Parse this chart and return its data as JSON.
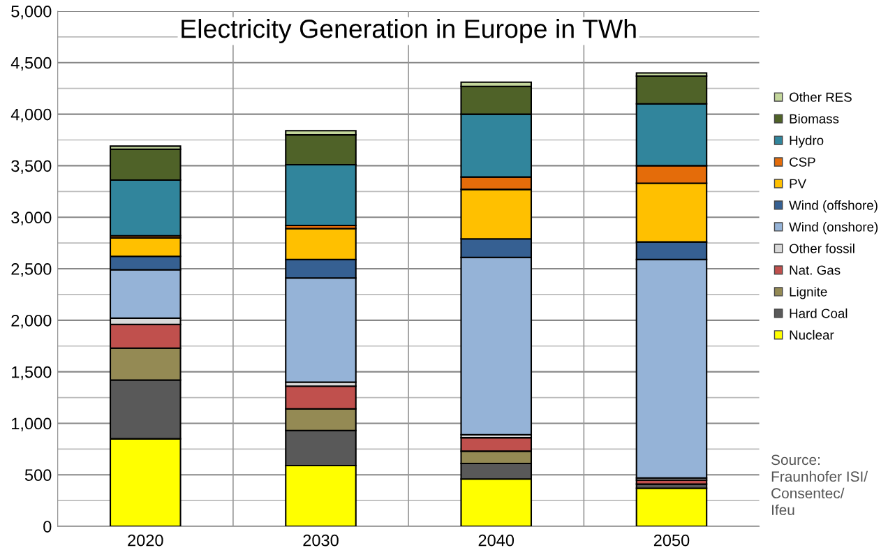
{
  "chart_data": {
    "type": "bar",
    "stacked": true,
    "title": "Electricity Generation in Europe in TWh",
    "categories": [
      "2020",
      "2030",
      "2040",
      "2050"
    ],
    "series": [
      {
        "name": "Nuclear",
        "color": "#ffff00",
        "values": [
          850,
          590,
          460,
          370
        ]
      },
      {
        "name": "Hard Coal",
        "color": "#595959",
        "values": [
          570,
          340,
          150,
          40
        ]
      },
      {
        "name": "Lignite",
        "color": "#948a54",
        "values": [
          310,
          210,
          120,
          null
        ]
      },
      {
        "name": "Nat. Gas",
        "color": "#c0504d",
        "values": [
          230,
          220,
          130,
          40
        ]
      },
      {
        "name": "Other fossil",
        "color": "#d9d9d9",
        "values": [
          60,
          40,
          30,
          20
        ]
      },
      {
        "name": "Wind (onshore)",
        "color": "#95b3d7",
        "values": [
          470,
          1010,
          1720,
          2120
        ]
      },
      {
        "name": "Wind (offshore)",
        "color": "#366092",
        "values": [
          130,
          180,
          180,
          170
        ]
      },
      {
        "name": "PV",
        "color": "#ffc000",
        "values": [
          180,
          300,
          480,
          570
        ]
      },
      {
        "name": "CSP",
        "color": "#e46c0a",
        "values": [
          20,
          30,
          120,
          170
        ]
      },
      {
        "name": "Hydro",
        "color": "#31859c",
        "values": [
          540,
          590,
          610,
          600
        ]
      },
      {
        "name": "Biomass",
        "color": "#4f6228",
        "values": [
          300,
          290,
          270,
          270
        ]
      },
      {
        "name": "Other RES",
        "color": "#c3d69b",
        "values": [
          30,
          40,
          40,
          30
        ]
      }
    ],
    "ylim": [
      0,
      5000
    ],
    "yticks": [
      0,
      {
        "value": 250,
        "label": null
      },
      {
        "value": 500,
        "label": "500"
      },
      {
        "value": 750,
        "label": null
      },
      {
        "value": 1000,
        "label": "1,000"
      },
      {
        "value": 1250,
        "label": null
      },
      {
        "value": 1500,
        "label": "1,500"
      },
      {
        "value": 1750,
        "label": null
      },
      {
        "value": 2000,
        "label": "2,000"
      },
      {
        "value": 2250,
        "label": null
      },
      {
        "value": 2500,
        "label": "2,500"
      },
      {
        "value": 2750,
        "label": null
      },
      {
        "value": 3000,
        "label": "3,000"
      },
      {
        "value": 3250,
        "label": null
      },
      {
        "value": 3500,
        "label": "3,500"
      },
      {
        "value": 3750,
        "label": null
      },
      {
        "value": 4000,
        "label": "4,000"
      },
      {
        "value": 4250,
        "label": null
      },
      {
        "value": 4500,
        "label": "4,500"
      },
      {
        "value": 4750,
        "label": null
      },
      {
        "value": 5000,
        "label": "5,000"
      }
    ],
    "grid": true,
    "legend": "right",
    "annotations": [
      "Source:\nFraunhofer ISI/\nConsentec/\nIfeu"
    ]
  }
}
